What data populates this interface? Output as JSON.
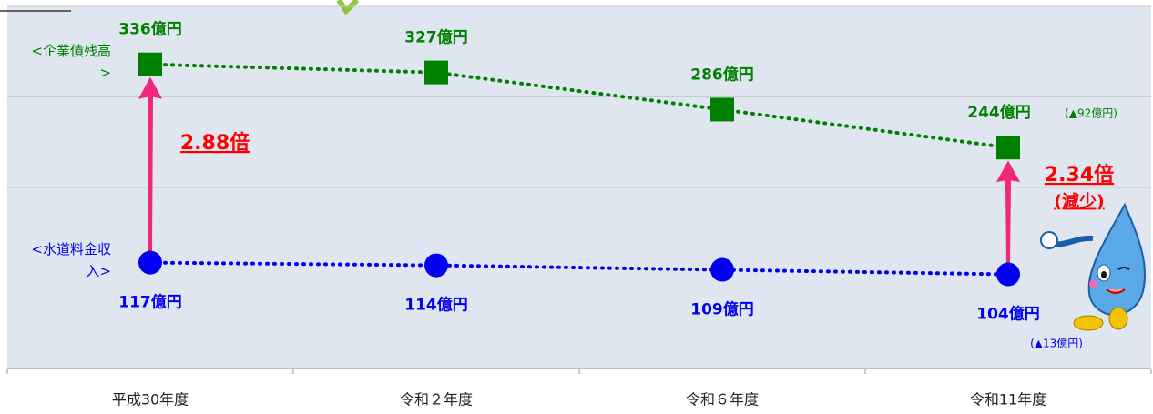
{
  "chart_data": {
    "type": "line",
    "categories": [
      "平成30年度",
      "令和２年度",
      "令和６年度",
      "令和11年度"
    ],
    "series": [
      {
        "name": "<企業債残高>",
        "color": "#008000",
        "marker": "square",
        "values": [
          336,
          327,
          286,
          244
        ],
        "value_labels": [
          "336億円",
          "327億円",
          "286億円",
          "244億円"
        ]
      },
      {
        "name": "<水道料金収入>",
        "color": "#0000ee",
        "marker": "circle",
        "values": [
          117,
          114,
          109,
          104
        ],
        "value_labels": [
          "117億円",
          "114億円",
          "109億円",
          "104億円"
        ]
      }
    ],
    "ylim": [
      0,
      400
    ],
    "yticks": [
      0,
      100,
      200,
      300,
      400
    ],
    "grid": true,
    "annotations": [
      "2.88倍",
      "2.34倍",
      "(減少)",
      "(▲92億円)",
      "(▲13億円)"
    ]
  }
}
